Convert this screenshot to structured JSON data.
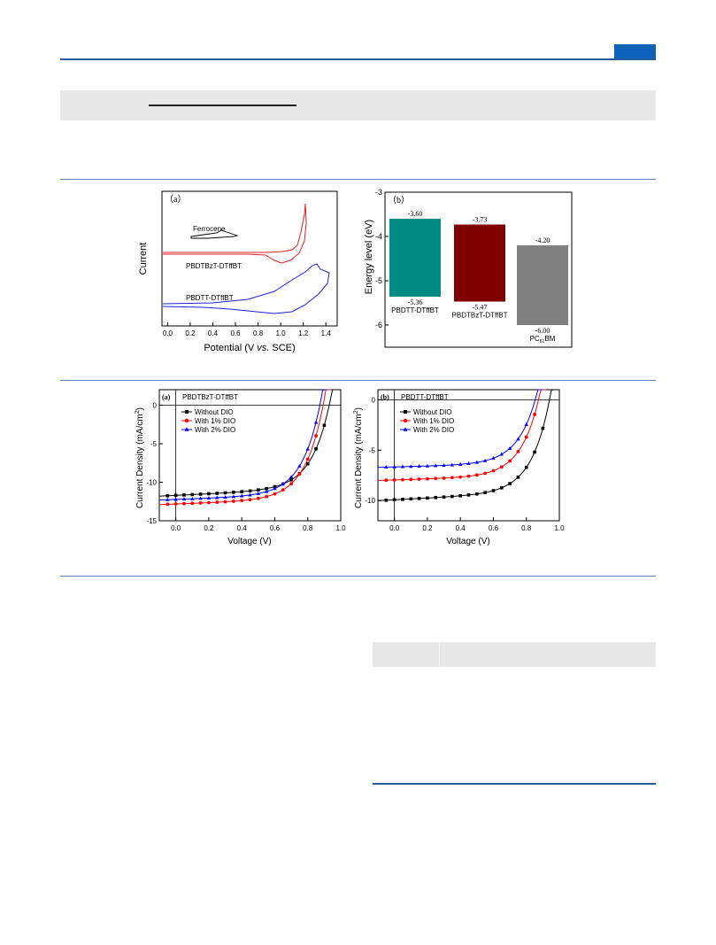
{
  "cv_panel": {
    "panel_label": "（a）",
    "ylabel": "Current",
    "xlabel_pre": "Potential (V ",
    "xlabel_em": "vs.",
    "xlabel_post": " SCE)",
    "ticks": [
      "0.0",
      "0.2",
      "0.4",
      "0.6",
      "0.8",
      "1.0",
      "1.2",
      "1.4"
    ],
    "curve_labels": [
      "Ferrocene",
      "PBDTBzT-DTffBT",
      "PBDTT-DTffBT"
    ],
    "colors": {
      "ferrocene": "#000000",
      "bzt": "#e02020",
      "tt": "#2020e0"
    }
  },
  "energy_panel": {
    "panel_label": "（b）",
    "ylabel": "Energy level (eV)",
    "ticks": [
      "-3",
      "-4",
      "-5",
      "-6"
    ],
    "bars": [
      {
        "name": "PBDTT-DTffBT",
        "lumo_label": "-3.60",
        "homo_label": "-5.36",
        "lumo": -3.6,
        "homo": -5.36,
        "color": "#008b84"
      },
      {
        "name": "PBDTBzT-DTffBT",
        "lumo_label": "-3.73",
        "homo_label": "-5.47",
        "lumo": -3.73,
        "homo": -5.47,
        "color": "#800000"
      },
      {
        "name": "PC",
        "name_sub": "61",
        "name_post": "BM",
        "lumo_label": "-4.20",
        "homo_label": "-6.00",
        "lumo": -4.2,
        "homo": -6.0,
        "color": "#808080"
      }
    ]
  },
  "jv_a": {
    "panel_label": "(a)",
    "title": "PBDTBzT-DTffBT",
    "legend": [
      "Without DIO",
      "With 1% DIO",
      "With 2% DIO"
    ]
  },
  "jv_b": {
    "panel_label": "(b)",
    "title": "PBDTT-DTffBT",
    "legend": [
      "Without DIO",
      "With 1% DIO",
      "With 2% DIO"
    ]
  },
  "jv_axes": {
    "xlabel": "Voltage (V)",
    "ylabel": "Current Density (mA/cm",
    "ylabel_sup": "2",
    "ylabel_post": ")",
    "xticks": [
      "0.0",
      "0.2",
      "0.4",
      "0.6",
      "0.8",
      "1.0"
    ],
    "yticks_a": [
      "0",
      "-5",
      "-10",
      "-15"
    ],
    "yticks_b": [
      "0",
      "-5",
      "-10"
    ]
  },
  "chart_data": [
    {
      "type": "line",
      "x": [
        0.0,
        0.2,
        0.4,
        0.6,
        0.8,
        1.0,
        1.1,
        1.2
      ],
      "xlabel": "Potential (V vs. SCE)",
      "ylabel": "Current",
      "xlim": [
        0.0,
        1.4
      ],
      "series": [
        {
          "name": "Ferrocene"
        },
        {
          "name": "PBDTBzT-DTffBT"
        },
        {
          "name": "PBDTT-DTffBT"
        }
      ]
    },
    {
      "type": "bar",
      "categories": [
        "PBDTT-DTffBT",
        "PBDTBzT-DTffBT",
        "PC61BM"
      ],
      "lumo": [
        -3.6,
        -3.73,
        -4.2
      ],
      "homo": [
        -5.36,
        -5.47,
        -6.0
      ],
      "ylabel": "Energy level (eV)",
      "ylim": [
        -6.5,
        -3
      ]
    },
    {
      "type": "line",
      "title": "PBDTBzT-DTffBT",
      "xlabel": "Voltage (V)",
      "ylabel": "Current Density (mA/cm2)",
      "xlim": [
        -0.1,
        1.0
      ],
      "ylim": [
        -15,
        2
      ],
      "series": [
        {
          "name": "Without DIO",
          "jsc": -11.8,
          "voc": 0.94,
          "color": "#000000",
          "marker": "square"
        },
        {
          "name": "With 1% DIO",
          "jsc": -12.9,
          "voc": 0.9,
          "color": "#ff0000",
          "marker": "circle"
        },
        {
          "name": "With 2% DIO",
          "jsc": -12.3,
          "voc": 0.88,
          "color": "#0000ff",
          "marker": "triangle"
        }
      ]
    },
    {
      "type": "line",
      "title": "PBDTT-DTffBT",
      "xlabel": "Voltage (V)",
      "ylabel": "Current Density (mA/cm2)",
      "xlim": [
        -0.1,
        1.0
      ],
      "ylim": [
        -12,
        1
      ],
      "series": [
        {
          "name": "Without DIO",
          "jsc": -10.0,
          "voc": 0.95,
          "color": "#000000",
          "marker": "square"
        },
        {
          "name": "With 1% DIO",
          "jsc": -8.0,
          "voc": 0.88,
          "color": "#ff0000",
          "marker": "circle"
        },
        {
          "name": "With 2% DIO",
          "jsc": -6.7,
          "voc": 0.86,
          "color": "#0000ff",
          "marker": "triangle"
        }
      ]
    }
  ]
}
